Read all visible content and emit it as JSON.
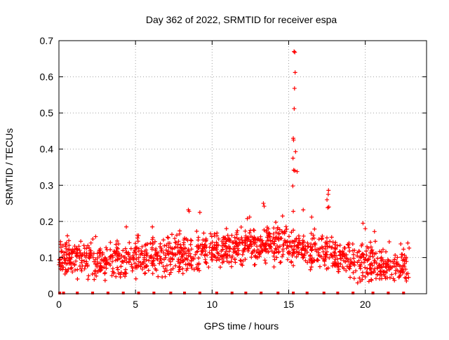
{
  "chart_data": {
    "type": "scatter",
    "title": "Day 362 of 2022, SRMTID for receiver espa",
    "xlabel": "GPS time / hours",
    "ylabel": "SRMTID / TECUs",
    "xlim": [
      0,
      24
    ],
    "ylim": [
      0,
      0.7
    ],
    "x_ticks": [
      0,
      5,
      10,
      15,
      20
    ],
    "y_ticks": [
      0,
      0.1,
      0.2,
      0.3,
      0.4,
      0.5,
      0.6,
      0.7
    ],
    "x_tick_labels": [
      "0",
      "5",
      "10",
      "15",
      "20"
    ],
    "y_tick_labels": [
      "0",
      "0.1",
      "0.2",
      "0.3",
      "0.4",
      "0.5",
      "0.6",
      "0.7"
    ],
    "grid": true,
    "marker": "+",
    "series_color": "#ff0000",
    "background": "#ffffff",
    "time_range_hours": [
      0.0,
      22.9
    ],
    "trend": [
      [
        0.0,
        0.1
      ],
      [
        1.0,
        0.1
      ],
      [
        2.0,
        0.095
      ],
      [
        3.0,
        0.09
      ],
      [
        4.0,
        0.09
      ],
      [
        5.0,
        0.1
      ],
      [
        6.0,
        0.1
      ],
      [
        7.0,
        0.1
      ],
      [
        8.0,
        0.11
      ],
      [
        9.0,
        0.11
      ],
      [
        10.0,
        0.12
      ],
      [
        11.0,
        0.12
      ],
      [
        12.0,
        0.13
      ],
      [
        13.0,
        0.14
      ],
      [
        14.0,
        0.14
      ],
      [
        15.0,
        0.13
      ],
      [
        16.0,
        0.12
      ],
      [
        17.0,
        0.12
      ],
      [
        18.0,
        0.11
      ],
      [
        19.0,
        0.1
      ],
      [
        20.0,
        0.09
      ],
      [
        21.0,
        0.08
      ],
      [
        22.0,
        0.075
      ],
      [
        22.9,
        0.08
      ]
    ],
    "highlight_points": [
      [
        15.35,
        0.67
      ],
      [
        15.4,
        0.668
      ],
      [
        15.42,
        0.612
      ],
      [
        15.38,
        0.568
      ],
      [
        15.36,
        0.512
      ],
      [
        15.3,
        0.43
      ],
      [
        15.32,
        0.425
      ],
      [
        15.45,
        0.393
      ],
      [
        15.28,
        0.375
      ],
      [
        15.33,
        0.342
      ],
      [
        15.4,
        0.34
      ],
      [
        15.55,
        0.338
      ],
      [
        15.27,
        0.298
      ],
      [
        15.3,
        0.228
      ],
      [
        17.6,
        0.286
      ],
      [
        17.58,
        0.275
      ],
      [
        17.55,
        0.238
      ],
      [
        17.62,
        0.24
      ],
      [
        17.5,
        0.26
      ],
      [
        8.45,
        0.232
      ],
      [
        8.5,
        0.228
      ],
      [
        9.2,
        0.225
      ],
      [
        13.35,
        0.25
      ],
      [
        13.4,
        0.242
      ],
      [
        12.3,
        0.208
      ],
      [
        12.45,
        0.212
      ],
      [
        19.85,
        0.195
      ],
      [
        20.0,
        0.18
      ],
      [
        20.6,
        0.172
      ],
      [
        4.4,
        0.185
      ],
      [
        6.1,
        0.185
      ],
      [
        2.4,
        0.158
      ],
      [
        14.6,
        0.215
      ],
      [
        15.95,
        0.232
      ],
      [
        16.5,
        0.212
      ]
    ],
    "zero_points_x": [
      0.05,
      0.3,
      1.2,
      2.2,
      3.2,
      4.2,
      5.2,
      6.2,
      7.3,
      8.2,
      9.2,
      10.3,
      11.3,
      12.2,
      13.2,
      14.3,
      15.3,
      16.2,
      17.3,
      18.2,
      19.2,
      20.5,
      21.5,
      22.5
    ]
  }
}
